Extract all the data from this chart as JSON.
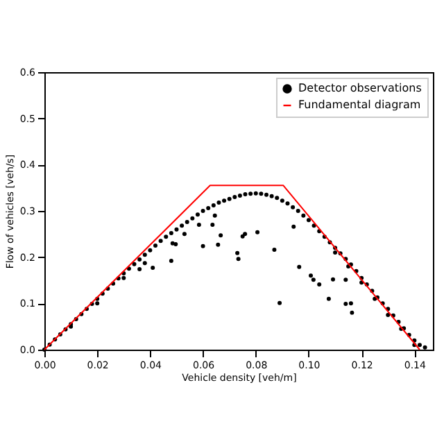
{
  "chart_data": {
    "type": "scatter",
    "xlabel": "Vehicle density [veh/m]",
    "ylabel": "Flow of vehicles [veh/s]",
    "xlim": [
      0,
      0.147
    ],
    "ylim": [
      0,
      0.6
    ],
    "xticks": [
      {
        "value": 0,
        "label": "0.00"
      },
      {
        "value": 0.02,
        "label": "0.02"
      },
      {
        "value": 0.04,
        "label": "0.04"
      },
      {
        "value": 0.06,
        "label": "0.06"
      },
      {
        "value": 0.08,
        "label": "0.08"
      },
      {
        "value": 0.1,
        "label": "0.10"
      },
      {
        "value": 0.12,
        "label": "0.12"
      },
      {
        "value": 0.14,
        "label": "0.14"
      }
    ],
    "yticks": [
      {
        "value": 0,
        "label": "0.0"
      },
      {
        "value": 0.1,
        "label": "0.1"
      },
      {
        "value": 0.2,
        "label": "0.2"
      },
      {
        "value": 0.3,
        "label": "0.3"
      },
      {
        "value": 0.4,
        "label": "0.4"
      },
      {
        "value": 0.5,
        "label": "0.5"
      },
      {
        "value": 0.6,
        "label": "0.6"
      }
    ],
    "grid": false,
    "legend": "top right",
    "series": [
      {
        "name": "Detector observations",
        "marker": "circle",
        "color": "#000000",
        "x": [
          0,
          0.002,
          0.004,
          0.006,
          0.008,
          0.01,
          0.012,
          0.014,
          0.016,
          0.018,
          0.02,
          0.022,
          0.024,
          0.026,
          0.028,
          0.03,
          0.032,
          0.034,
          0.036,
          0.038,
          0.04,
          0.042,
          0.044,
          0.046,
          0.048,
          0.05,
          0.052,
          0.054,
          0.056,
          0.058,
          0.06,
          0.062,
          0.064,
          0.066,
          0.068,
          0.07,
          0.072,
          0.074,
          0.076,
          0.078,
          0.08,
          0.082,
          0.084,
          0.086,
          0.088,
          0.09,
          0.092,
          0.094,
          0.096,
          0.098,
          0.1,
          0.102,
          0.104,
          0.106,
          0.108,
          0.11,
          0.112,
          0.114,
          0.116,
          0.118,
          0.12,
          0.122,
          0.124,
          0.126,
          0.128,
          0.13,
          0.132,
          0.134,
          0.136,
          0.138,
          0.14,
          0.142,
          0.144,
          0.01,
          0.02,
          0.03,
          0.11,
          0.115,
          0.12,
          0.125,
          0.13,
          0.135,
          0.14,
          0.038,
          0.036,
          0.041,
          0.048,
          0.0485,
          0.0497,
          0.053,
          0.0585,
          0.06,
          0.0636,
          0.0645,
          0.0657,
          0.0667,
          0.073,
          0.0734,
          0.075,
          0.0759,
          0.0806,
          0.087,
          0.089,
          0.0943,
          0.0964,
          0.1008,
          0.1018,
          0.104,
          0.1076,
          0.1092,
          0.114,
          0.116,
          0.1164,
          0.114
        ],
        "values": [
          0,
          0.011,
          0.022,
          0.033,
          0.044,
          0.055,
          0.066,
          0.077,
          0.088,
          0.099,
          0.11,
          0.121,
          0.132,
          0.143,
          0.154,
          0.165,
          0.175,
          0.185,
          0.195,
          0.205,
          0.215,
          0.225,
          0.235,
          0.244,
          0.252,
          0.26,
          0.268,
          0.276,
          0.284,
          0.292,
          0.3,
          0.306,
          0.312,
          0.318,
          0.322,
          0.326,
          0.33,
          0.333,
          0.336,
          0.337,
          0.338,
          0.337,
          0.335,
          0.332,
          0.328,
          0.322,
          0.316,
          0.308,
          0.3,
          0.29,
          0.28,
          0.268,
          0.256,
          0.244,
          0.232,
          0.22,
          0.208,
          0.196,
          0.184,
          0.17,
          0.155,
          0.141,
          0.127,
          0.113,
          0.1,
          0.088,
          0.074,
          0.06,
          0.046,
          0.032,
          0.02,
          0.01,
          0.005,
          0.05,
          0.1,
          0.155,
          0.21,
          0.18,
          0.145,
          0.11,
          0.075,
          0.045,
          0.01,
          0.187,
          0.174,
          0.177,
          0.192,
          0.23,
          0.228,
          0.25,
          0.27,
          0.224,
          0.27,
          0.29,
          0.227,
          0.247,
          0.209,
          0.196,
          0.245,
          0.25,
          0.254,
          0.216,
          0.101,
          0.266,
          0.179,
          0.16,
          0.151,
          0.141,
          0.11,
          0.152,
          0.099,
          0.1,
          0.08,
          0.151
        ]
      },
      {
        "name": "Fundamental diagram",
        "type": "line",
        "color": "#ff0000",
        "x": [
          0,
          0.0627,
          0.0904,
          0.142
        ],
        "values": [
          0,
          0.355,
          0.355,
          0
        ]
      }
    ]
  }
}
